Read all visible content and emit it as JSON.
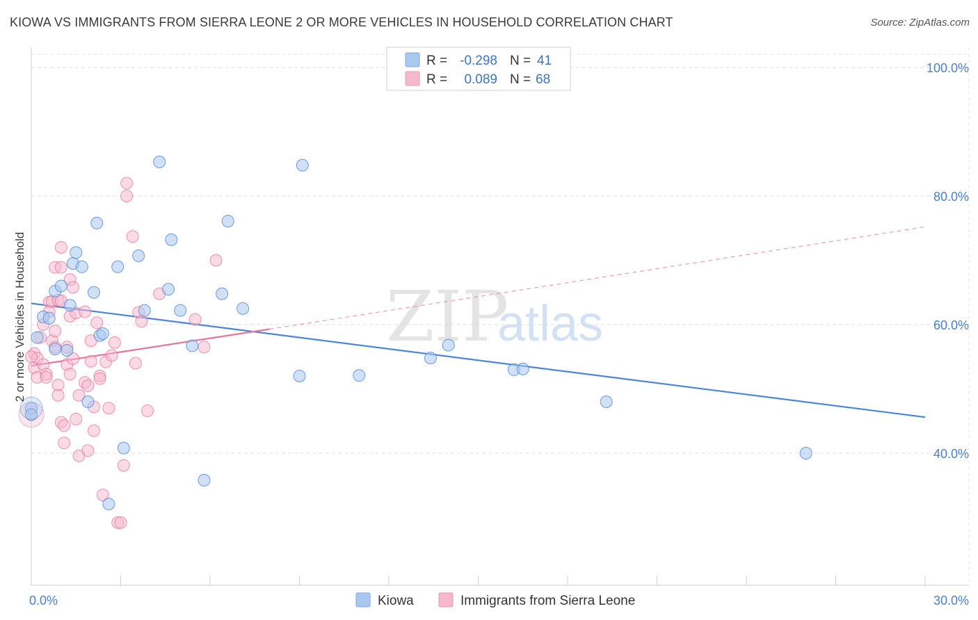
{
  "header": {
    "title": "KIOWA VS IMMIGRANTS FROM SIERRA LEONE 2 OR MORE VEHICLES IN HOUSEHOLD CORRELATION CHART",
    "source": "Source: ZipAtlas.com"
  },
  "watermark": {
    "zip": "ZIP",
    "atlas": "atlas"
  },
  "legend": {
    "rows": [
      {
        "r_label": "R =",
        "r_value": "-0.298",
        "n_label": "N =",
        "n_value": "41",
        "color": "#a9c8f0"
      },
      {
        "r_label": "R =",
        "r_value": "0.089",
        "n_label": "N =",
        "n_value": "68",
        "color": "#f6b8cc"
      }
    ]
  },
  "bottom_legend": {
    "items": [
      {
        "label": "Kiowa",
        "color": "#a9c8f0"
      },
      {
        "label": "Immigrants from Sierra Leone",
        "color": "#f6b8cc"
      }
    ]
  },
  "chart_data": {
    "type": "scatter",
    "title": "KIOWA VS IMMIGRANTS FROM SIERRA LEONE 2 OR MORE VEHICLES IN HOUSEHOLD CORRELATION CHART",
    "xlabel": "",
    "ylabel": "2 or more Vehicles in Household",
    "xlim": [
      0,
      30
    ],
    "ylim": [
      20,
      104
    ],
    "x_tick_labels": [
      "0.0%",
      "30.0%"
    ],
    "y_ticks": [
      40,
      60,
      80,
      100
    ],
    "y_tick_labels": [
      "40.0%",
      "60.0%",
      "80.0%",
      "100.0%"
    ],
    "colors": {
      "kiowa": "#4a86d8",
      "kiowa_fill": "#a9c8f0",
      "sierra": "#e8729a",
      "sierra_fill": "#f6b8cc"
    },
    "series": [
      {
        "name": "Kiowa",
        "r": -0.298,
        "n": 41,
        "trend": {
          "x": [
            0,
            30
          ],
          "y": [
            63.3,
            45.6
          ]
        },
        "points": [
          [
            0.0,
            47.0
          ],
          [
            0.0,
            46.0
          ],
          [
            0.2,
            58.0
          ],
          [
            0.4,
            61.2
          ],
          [
            0.6,
            61.0
          ],
          [
            0.8,
            65.2
          ],
          [
            0.8,
            56.2
          ],
          [
            1.0,
            66.0
          ],
          [
            1.2,
            56.0
          ],
          [
            1.3,
            63.0
          ],
          [
            1.4,
            69.5
          ],
          [
            1.5,
            71.2
          ],
          [
            1.7,
            69.0
          ],
          [
            1.9,
            48.0
          ],
          [
            2.1,
            65.0
          ],
          [
            2.2,
            75.8
          ],
          [
            2.3,
            58.3
          ],
          [
            2.4,
            58.6
          ],
          [
            2.6,
            32.1
          ],
          [
            2.9,
            69.0
          ],
          [
            3.1,
            40.8
          ],
          [
            3.6,
            70.7
          ],
          [
            3.8,
            62.2
          ],
          [
            4.3,
            85.3
          ],
          [
            4.6,
            65.5
          ],
          [
            4.7,
            73.2
          ],
          [
            5.0,
            62.2
          ],
          [
            5.4,
            56.7
          ],
          [
            5.8,
            35.8
          ],
          [
            6.4,
            64.8
          ],
          [
            6.6,
            76.1
          ],
          [
            7.1,
            62.5
          ],
          [
            9.0,
            52.0
          ],
          [
            9.1,
            84.8
          ],
          [
            11.0,
            52.1
          ],
          [
            13.4,
            54.8
          ],
          [
            14.0,
            56.8
          ],
          [
            16.2,
            53.0
          ],
          [
            16.5,
            53.1
          ],
          [
            19.3,
            48.0
          ],
          [
            26.0,
            40.0
          ]
        ]
      },
      {
        "name": "Immigrants from Sierra Leone",
        "r": 0.089,
        "n": 68,
        "trend": {
          "x": [
            0,
            8
          ],
          "y": [
            53.6,
            59.3
          ]
        },
        "trend_ext": {
          "x": [
            8,
            30
          ],
          "y": [
            59.3,
            75.2
          ]
        },
        "points": [
          [
            0.0,
            46.0
          ],
          [
            0.1,
            55.5
          ],
          [
            0.1,
            53.3
          ],
          [
            0.2,
            51.8
          ],
          [
            0.2,
            54.8
          ],
          [
            0.3,
            58.0
          ],
          [
            0.4,
            60.0
          ],
          [
            0.4,
            53.8
          ],
          [
            0.5,
            52.3
          ],
          [
            0.5,
            51.8
          ],
          [
            0.6,
            63.5
          ],
          [
            0.6,
            62.0
          ],
          [
            0.7,
            63.6
          ],
          [
            0.7,
            57.5
          ],
          [
            0.8,
            68.9
          ],
          [
            0.8,
            59.0
          ],
          [
            0.8,
            56.5
          ],
          [
            0.9,
            63.8
          ],
          [
            0.9,
            50.6
          ],
          [
            0.9,
            49.0
          ],
          [
            1.0,
            72.0
          ],
          [
            1.0,
            68.9
          ],
          [
            1.0,
            63.7
          ],
          [
            1.0,
            44.8
          ],
          [
            1.1,
            44.3
          ],
          [
            1.1,
            41.6
          ],
          [
            1.2,
            53.8
          ],
          [
            1.2,
            56.5
          ],
          [
            1.3,
            67.0
          ],
          [
            1.3,
            61.3
          ],
          [
            1.3,
            52.3
          ],
          [
            1.4,
            65.8
          ],
          [
            1.4,
            54.7
          ],
          [
            1.5,
            61.8
          ],
          [
            1.5,
            45.3
          ],
          [
            1.6,
            49.0
          ],
          [
            1.6,
            39.6
          ],
          [
            1.8,
            62.0
          ],
          [
            1.8,
            51.0
          ],
          [
            1.9,
            50.5
          ],
          [
            1.9,
            40.4
          ],
          [
            2.0,
            57.5
          ],
          [
            2.0,
            54.3
          ],
          [
            2.1,
            47.2
          ],
          [
            2.1,
            43.5
          ],
          [
            2.2,
            60.3
          ],
          [
            2.3,
            52.0
          ],
          [
            2.3,
            51.6
          ],
          [
            2.4,
            33.5
          ],
          [
            2.5,
            54.2
          ],
          [
            2.6,
            47.0
          ],
          [
            2.7,
            55.2
          ],
          [
            2.8,
            57.2
          ],
          [
            2.9,
            29.2
          ],
          [
            3.0,
            29.2
          ],
          [
            3.1,
            38.1
          ],
          [
            3.2,
            80.0
          ],
          [
            3.2,
            82.0
          ],
          [
            3.4,
            73.7
          ],
          [
            3.5,
            54.0
          ],
          [
            3.6,
            61.9
          ],
          [
            3.7,
            60.5
          ],
          [
            3.9,
            46.6
          ],
          [
            4.3,
            64.8
          ],
          [
            5.5,
            60.8
          ],
          [
            5.8,
            56.5
          ],
          [
            6.2,
            70.0
          ],
          [
            0.0,
            55.0
          ]
        ]
      }
    ]
  }
}
